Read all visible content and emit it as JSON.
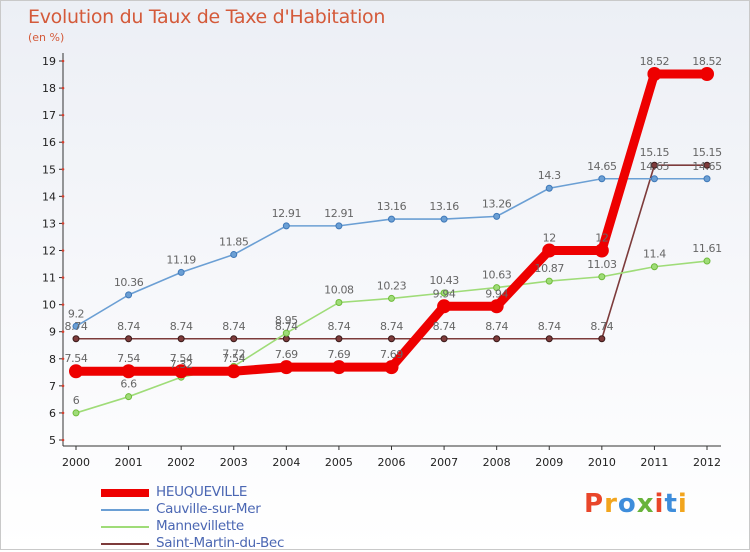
{
  "title": "Evolution du Taux de Taxe d'Habitation",
  "subtitle": "(en %)",
  "logo": {
    "text": "Proxiti",
    "letters": [
      {
        "ch": "P",
        "color": "#e9462a"
      },
      {
        "ch": "r",
        "color": "#f2a51d"
      },
      {
        "ch": "o",
        "color": "#3e8ddb"
      },
      {
        "ch": "x",
        "color": "#68b33a"
      },
      {
        "ch": "i",
        "color": "#e9462a"
      },
      {
        "ch": "t",
        "color": "#3e8ddb"
      },
      {
        "ch": "i",
        "color": "#f2a51d"
      }
    ]
  },
  "chart_data": {
    "type": "line",
    "title": "Evolution du Taux de Taxe d'Habitation",
    "ylabel": "(en %)",
    "xlabel": "",
    "categories": [
      "2000",
      "2001",
      "2002",
      "2003",
      "2004",
      "2005",
      "2006",
      "2007",
      "2008",
      "2009",
      "2010",
      "2011",
      "2012"
    ],
    "y_ticks": [
      "5",
      "6",
      "7",
      "8",
      "9",
      "10",
      "11",
      "12",
      "13",
      "14",
      "15",
      "16",
      "17",
      "18",
      "19"
    ],
    "ylim": [
      5,
      19
    ],
    "grid": false,
    "legend_position": "bottom-left",
    "series": [
      {
        "name": "HEUQUEVILLE",
        "color": "#ee0000",
        "values": [
          7.54,
          7.54,
          7.54,
          7.54,
          7.69,
          7.69,
          7.69,
          9.94,
          9.94,
          12,
          12,
          18.52,
          18.52
        ],
        "labels": [
          "7.54",
          "7.54",
          "7.54",
          "7.54",
          "7.69",
          "7.69",
          "7.69",
          "9.94",
          "9.94",
          "12",
          "12",
          "18.52",
          "18.52"
        ]
      },
      {
        "name": "Cauville-sur-Mer",
        "color": "#6b9fd4",
        "values": [
          9.2,
          10.36,
          11.19,
          11.85,
          12.91,
          12.91,
          13.16,
          13.16,
          13.26,
          14.3,
          14.65,
          14.65,
          14.65
        ],
        "labels": [
          "9.2",
          "10.36",
          "11.19",
          "11.85",
          "12.91",
          "12.91",
          "13.16",
          "13.16",
          "13.26",
          "14.3",
          "14.65",
          "14.65",
          "14.65"
        ]
      },
      {
        "name": "Mannevillette",
        "color": "#9fdc78",
        "values": [
          6,
          6.6,
          7.32,
          7.72,
          8.95,
          10.08,
          10.23,
          10.43,
          10.63,
          10.87,
          11.03,
          11.4,
          11.61
        ],
        "labels": [
          "6",
          "6.6",
          "7.32",
          "7.72",
          "8.95",
          "10.08",
          "10.23",
          "10.43",
          "10.63",
          "10.87",
          "11.03",
          "11.4",
          "11.61"
        ]
      },
      {
        "name": "Saint-Martin-du-Bec",
        "color": "#7d3b3b",
        "values": [
          8.74,
          8.74,
          8.74,
          8.74,
          8.74,
          8.74,
          8.74,
          8.74,
          8.74,
          8.74,
          8.74,
          15.15,
          15.15
        ],
        "labels": [
          "8.74",
          "8.74",
          "8.74",
          "8.74",
          "8.74",
          "8.74",
          "8.74",
          "8.74",
          "8.74",
          "8.74",
          "8.74",
          "15.15",
          "15.15"
        ]
      }
    ]
  }
}
